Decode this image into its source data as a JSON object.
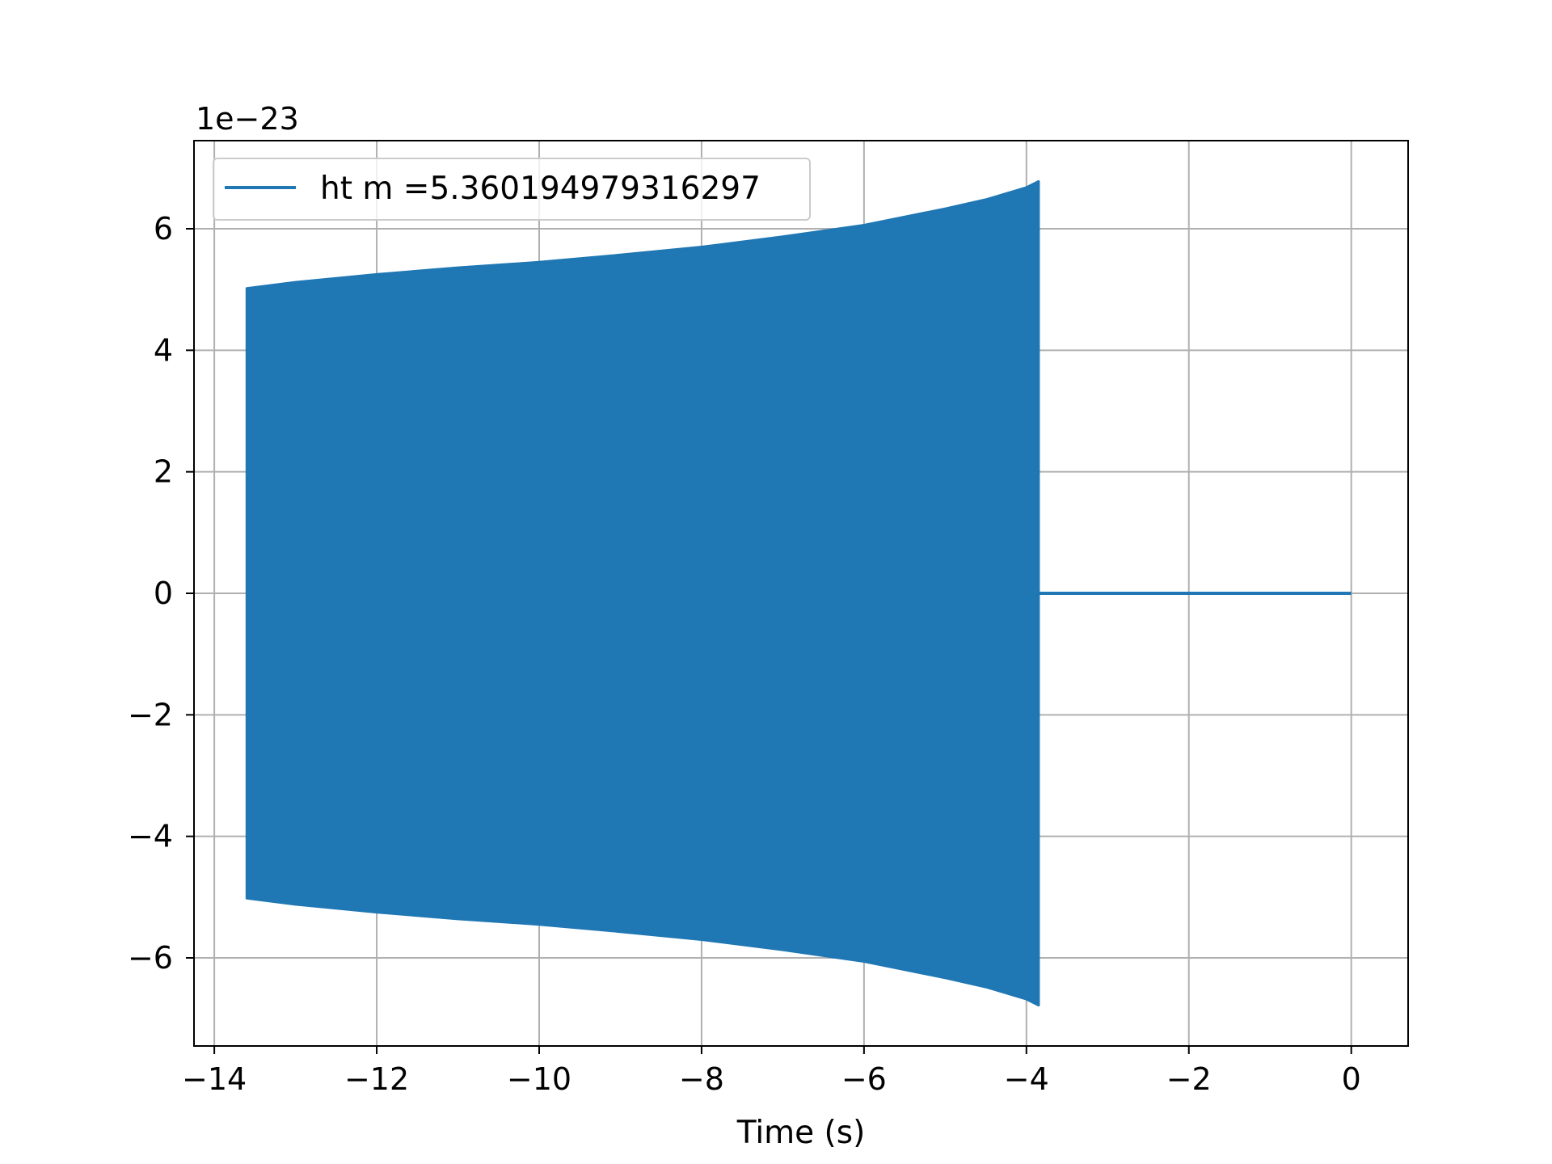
{
  "chart_data": {
    "type": "line",
    "title": "",
    "xlabel": "Time (s)",
    "ylabel": "",
    "y_offset_label": "1e−23",
    "xlim": [
      -14.25,
      0.7
    ],
    "ylim": [
      -7.45,
      7.45
    ],
    "x_ticks": [
      -14,
      -12,
      -10,
      -8,
      -6,
      -4,
      -2,
      0
    ],
    "x_tick_labels": [
      "−14",
      "−12",
      "−10",
      "−8",
      "−6",
      "−4",
      "−2",
      "0"
    ],
    "y_ticks": [
      -6,
      -4,
      -2,
      0,
      2,
      4,
      6
    ],
    "y_tick_labels": [
      "−6",
      "−4",
      "−2",
      "0",
      "2",
      "4",
      "6"
    ],
    "grid": true,
    "legend_position": "top-left",
    "series": [
      {
        "name": "ht m =5.360194979316297",
        "color": "#1f77b4",
        "envelope_x": [
          -13.6,
          -13.0,
          -12.0,
          -11.0,
          -10.0,
          -9.0,
          -8.0,
          -7.0,
          -6.0,
          -5.0,
          -4.5,
          -4.0,
          -3.85
        ],
        "envelope_upper": [
          5.02,
          5.12,
          5.25,
          5.36,
          5.45,
          5.57,
          5.7,
          5.87,
          6.06,
          6.33,
          6.48,
          6.68,
          6.78
        ],
        "envelope_lower": [
          -5.02,
          -5.12,
          -5.25,
          -5.36,
          -5.45,
          -5.57,
          -5.7,
          -5.87,
          -6.06,
          -6.33,
          -6.48,
          -6.68,
          -6.78
        ],
        "flat_segment": {
          "x": [
            -3.85,
            0.0
          ],
          "y": [
            0,
            0
          ]
        }
      }
    ]
  }
}
